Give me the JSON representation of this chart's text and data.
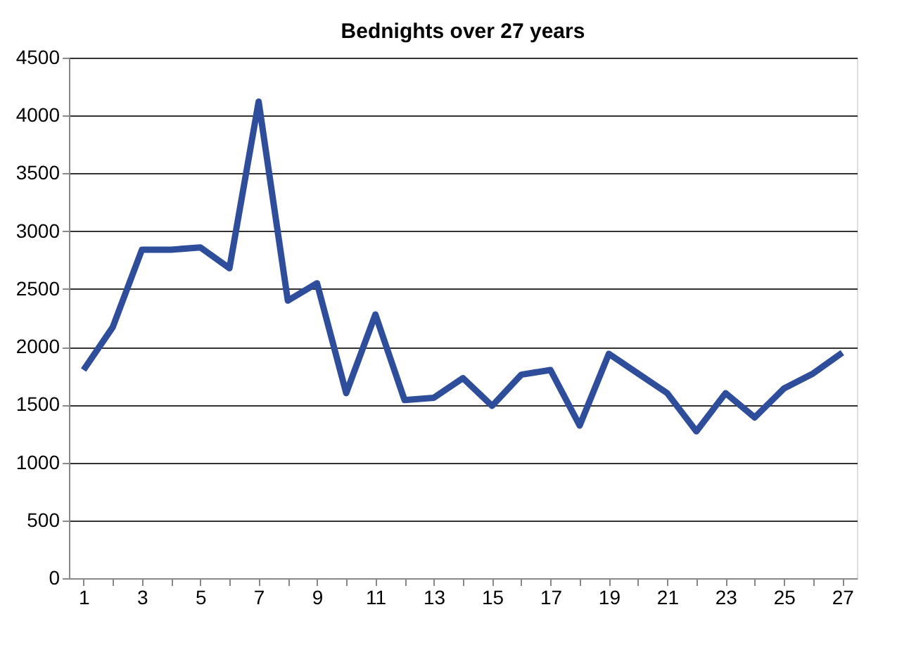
{
  "chart_data": {
    "type": "line",
    "title": "Bednights over 27 years",
    "x": [
      1,
      2,
      3,
      4,
      5,
      6,
      7,
      8,
      9,
      10,
      11,
      12,
      13,
      14,
      15,
      16,
      17,
      18,
      19,
      20,
      21,
      22,
      23,
      24,
      25,
      26,
      27
    ],
    "values": [
      1800,
      2170,
      2840,
      2840,
      2860,
      2680,
      4120,
      2400,
      2550,
      1600,
      2280,
      1540,
      1560,
      1730,
      1490,
      1760,
      1800,
      1320,
      1940,
      1770,
      1600,
      1270,
      1600,
      1390,
      1640,
      1770,
      1950
    ],
    "color": "#2e4d9a",
    "xlim": [
      0.5,
      27.5
    ],
    "xticks": [
      1,
      {
        "value": 2,
        "label": null
      },
      3,
      {
        "value": 4,
        "label": null
      },
      5,
      {
        "value": 6,
        "label": null
      },
      7,
      {
        "value": 8,
        "label": null
      },
      9,
      {
        "value": 10,
        "label": null
      },
      11,
      {
        "value": 12,
        "label": null
      },
      13,
      {
        "value": 14,
        "label": null
      },
      15,
      {
        "value": 16,
        "label": null
      },
      17,
      {
        "value": 18,
        "label": null
      },
      19,
      {
        "value": 20,
        "label": null
      },
      21,
      {
        "value": 22,
        "label": null
      },
      23,
      {
        "value": 24,
        "label": null
      },
      25,
      {
        "value": 26,
        "label": null
      },
      27
    ],
    "ylim": [
      0,
      4500
    ],
    "yticks": [
      0,
      500,
      1000,
      1500,
      2000,
      2500,
      3000,
      3500,
      4000,
      4500
    ],
    "grid": "y",
    "marker": "none",
    "line_style": "solid"
  }
}
